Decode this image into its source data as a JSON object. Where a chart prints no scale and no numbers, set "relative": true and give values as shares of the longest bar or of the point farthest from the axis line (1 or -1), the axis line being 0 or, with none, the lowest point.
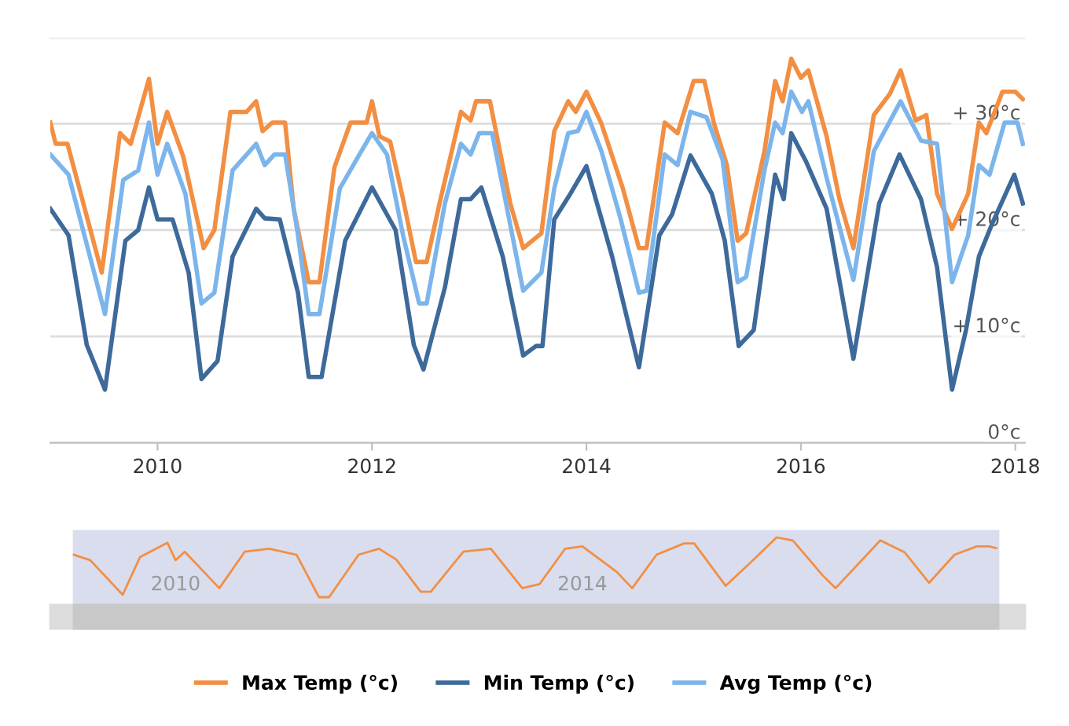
{
  "chart_data": [
    {
      "type": "line",
      "xlim": [
        2009.0,
        2018.09
      ],
      "xticks": [
        2010,
        2012,
        2014,
        2016,
        2018
      ],
      "ylim": [
        0,
        38
      ],
      "yticks": [
        {
          "value": 0,
          "label": "0°c"
        },
        {
          "value": 10,
          "label": "+ 10°c"
        },
        {
          "value": 20,
          "label": "+ 20°c"
        },
        {
          "value": 30,
          "label": "+ 30°c"
        }
      ],
      "grid": "y",
      "legend": "bottom",
      "line_style": "solid",
      "marker": "none",
      "series": [
        {
          "name": "Max Temp (°c)",
          "color": "#f28f43",
          "x": [
            2009.0,
            2009.05,
            2009.16,
            2009.48,
            2009.65,
            2009.75,
            2009.92,
            2010.0,
            2010.09,
            2010.24,
            2010.43,
            2010.53,
            2010.68,
            2010.83,
            2010.92,
            2010.98,
            2011.07,
            2011.19,
            2011.27,
            2011.41,
            2011.51,
            2011.65,
            2011.8,
            2011.95,
            2012.0,
            2012.07,
            2012.17,
            2012.29,
            2012.41,
            2012.51,
            2012.63,
            2012.83,
            2012.92,
            2012.97,
            2013.1,
            2013.29,
            2013.41,
            2013.58,
            2013.7,
            2013.83,
            2013.9,
            2014.0,
            2014.14,
            2014.34,
            2014.49,
            2014.56,
            2014.73,
            2014.85,
            2015.0,
            2015.1,
            2015.19,
            2015.31,
            2015.41,
            2015.49,
            2015.66,
            2015.76,
            2015.83,
            2015.91,
            2016.0,
            2016.07,
            2016.24,
            2016.36,
            2016.49,
            2016.68,
            2016.83,
            2016.93,
            2017.07,
            2017.17,
            2017.27,
            2017.41,
            2017.56,
            2017.66,
            2017.73,
            2017.88,
            2018.0,
            2018.07
          ],
          "values": [
            30.1,
            28.1,
            28.1,
            16.0,
            29.1,
            28.1,
            34.2,
            28.1,
            31.1,
            26.9,
            18.3,
            20.0,
            31.1,
            31.1,
            32.1,
            29.3,
            30.1,
            30.1,
            22.0,
            15.1,
            15.1,
            25.9,
            30.1,
            30.1,
            32.1,
            28.8,
            28.3,
            22.9,
            17.0,
            17.0,
            22.5,
            31.1,
            30.3,
            32.1,
            32.1,
            22.5,
            18.3,
            19.7,
            29.3,
            32.1,
            31.1,
            33.0,
            30.0,
            23.9,
            18.3,
            18.3,
            30.1,
            29.1,
            34.0,
            34.0,
            30.0,
            26.1,
            19.0,
            19.7,
            27.4,
            34.0,
            32.1,
            36.1,
            34.3,
            35.0,
            28.8,
            22.9,
            18.3,
            30.8,
            32.8,
            35.0,
            30.3,
            30.8,
            23.4,
            20.1,
            23.4,
            30.1,
            29.1,
            33.0,
            33.0,
            32.3
          ]
        },
        {
          "name": "Min Temp (°c)",
          "color": "#3d6a9b",
          "x": [
            2009.0,
            2009.17,
            2009.34,
            2009.51,
            2009.7,
            2009.82,
            2009.92,
            2010.0,
            2010.14,
            2010.29,
            2010.41,
            2010.56,
            2010.7,
            2010.92,
            2011.0,
            2011.14,
            2011.31,
            2011.41,
            2011.53,
            2011.75,
            2012.0,
            2012.22,
            2012.39,
            2012.48,
            2012.68,
            2012.83,
            2012.92,
            2013.02,
            2013.22,
            2013.41,
            2013.53,
            2013.59,
            2013.7,
            2013.85,
            2014.0,
            2014.24,
            2014.49,
            2014.68,
            2014.8,
            2014.97,
            2015.17,
            2015.29,
            2015.42,
            2015.56,
            2015.76,
            2015.84,
            2015.91,
            2016.05,
            2016.24,
            2016.49,
            2016.73,
            2016.92,
            2017.12,
            2017.27,
            2017.41,
            2017.54,
            2017.66,
            2017.78,
            2017.99,
            2018.07
          ],
          "values": [
            22.0,
            19.5,
            9.2,
            5.0,
            19.0,
            20.0,
            24.0,
            21.0,
            21.0,
            16.0,
            6.0,
            7.7,
            17.5,
            22.0,
            21.1,
            21.0,
            14.1,
            6.2,
            6.2,
            19.0,
            24.0,
            20.0,
            9.2,
            6.9,
            14.6,
            22.9,
            22.9,
            24.0,
            17.5,
            8.2,
            9.1,
            9.1,
            21.0,
            23.4,
            26.0,
            17.5,
            7.1,
            19.5,
            21.5,
            27.0,
            23.4,
            19.0,
            9.1,
            10.6,
            25.2,
            22.9,
            29.1,
            26.4,
            22.0,
            7.9,
            22.5,
            27.1,
            22.9,
            16.5,
            5.0,
            10.6,
            17.5,
            20.5,
            25.2,
            22.5
          ]
        },
        {
          "name": "Avg Temp (°c)",
          "color": "#7cb5ec",
          "x": [
            2009.0,
            2009.17,
            2009.51,
            2009.68,
            2009.82,
            2009.92,
            2010.0,
            2010.09,
            2010.26,
            2010.41,
            2010.53,
            2010.7,
            2010.92,
            2011.0,
            2011.09,
            2011.19,
            2011.31,
            2011.41,
            2011.51,
            2011.7,
            2011.9,
            2012.0,
            2012.14,
            2012.29,
            2012.44,
            2012.51,
            2012.68,
            2012.83,
            2012.92,
            2013.0,
            2013.12,
            2013.27,
            2013.41,
            2013.58,
            2013.7,
            2013.83,
            2013.92,
            2014.0,
            2014.14,
            2014.32,
            2014.49,
            2014.56,
            2014.73,
            2014.85,
            2014.97,
            2015.12,
            2015.27,
            2015.41,
            2015.49,
            2015.66,
            2015.76,
            2015.83,
            2015.91,
            2016.01,
            2016.07,
            2016.24,
            2016.49,
            2016.68,
            2016.93,
            2017.12,
            2017.27,
            2017.41,
            2017.56,
            2017.66,
            2017.76,
            2017.9,
            2018.02,
            2018.07
          ],
          "values": [
            27.1,
            25.2,
            12.1,
            24.7,
            25.6,
            30.1,
            25.2,
            28.1,
            23.4,
            13.1,
            14.1,
            25.6,
            28.1,
            26.1,
            27.1,
            27.1,
            19.5,
            12.1,
            12.1,
            23.9,
            27.4,
            29.1,
            27.1,
            19.5,
            13.1,
            13.1,
            22.5,
            28.1,
            27.1,
            29.1,
            29.1,
            21.5,
            14.3,
            16.0,
            23.9,
            29.1,
            29.3,
            31.1,
            27.4,
            21.0,
            14.1,
            14.3,
            27.1,
            26.1,
            31.1,
            30.6,
            26.6,
            15.1,
            15.6,
            25.6,
            30.1,
            29.1,
            33.0,
            31.1,
            32.1,
            24.9,
            15.3,
            27.4,
            32.1,
            28.4,
            28.1,
            15.1,
            19.5,
            26.1,
            25.2,
            30.1,
            30.1,
            28.1
          ]
        }
      ]
    },
    {
      "type": "line",
      "relative": true,
      "xlim": [
        2009.0,
        2018.09
      ],
      "xticks": [
        2010,
        2014
      ],
      "grid": "x",
      "tick_labels": "x",
      "marker": "none",
      "series": [
        {
          "color": "#f28f43",
          "x": [
            2009.0,
            2009.16,
            2009.48,
            2009.65,
            2009.92,
            2010.0,
            2010.09,
            2010.43,
            2010.68,
            2010.92,
            2011.19,
            2011.41,
            2011.51,
            2011.8,
            2012.0,
            2012.17,
            2012.41,
            2012.51,
            2012.83,
            2013.1,
            2013.41,
            2013.58,
            2013.83,
            2014.0,
            2014.34,
            2014.49,
            2014.73,
            2015.0,
            2015.1,
            2015.41,
            2015.66,
            2015.91,
            2016.07,
            2016.36,
            2016.49,
            2016.93,
            2017.17,
            2017.41,
            2017.66,
            2017.88,
            2018.0,
            2018.07
          ],
          "values": [
            0.71,
            0.62,
            0.04,
            0.67,
            0.91,
            0.62,
            0.76,
            0.15,
            0.76,
            0.81,
            0.71,
            0,
            0,
            0.71,
            0.81,
            0.63,
            0.09,
            0.09,
            0.76,
            0.81,
            0.15,
            0.22,
            0.81,
            0.85,
            0.42,
            0.15,
            0.71,
            0.9,
            0.9,
            0.19,
            0.59,
            1,
            0.95,
            0.37,
            0.15,
            0.95,
            0.75,
            0.24,
            0.71,
            0.85,
            0.85,
            0.82
          ]
        }
      ]
    }
  ]
}
